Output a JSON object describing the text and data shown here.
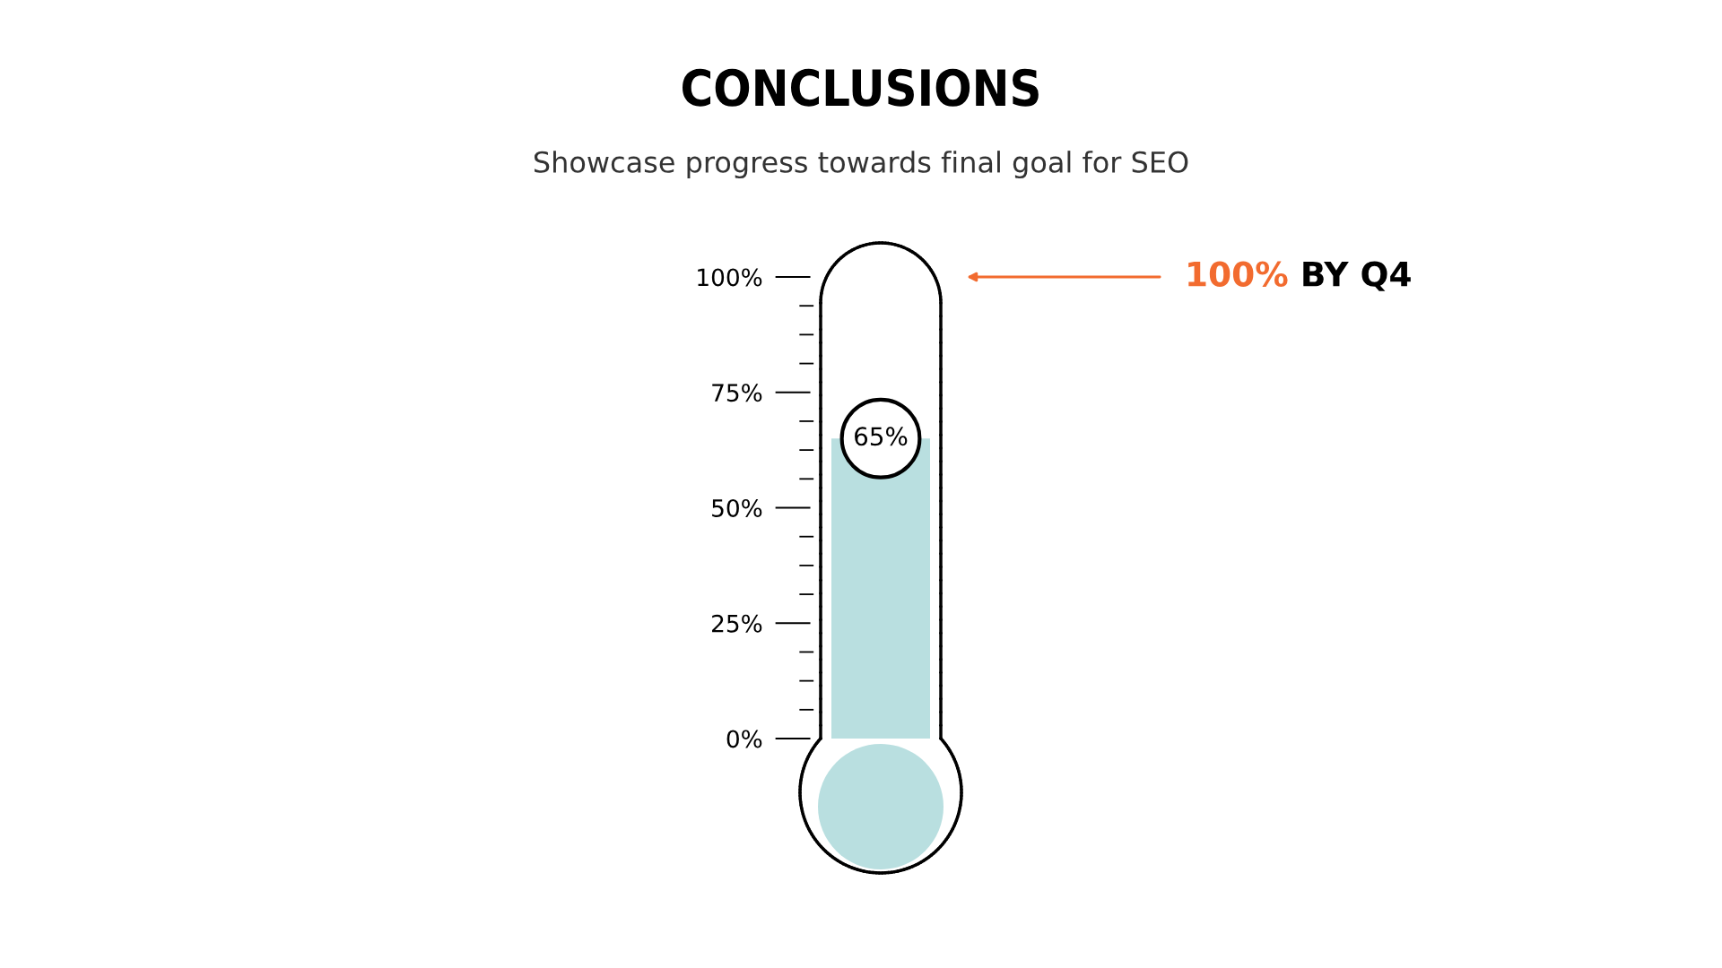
{
  "chart_data": {
    "type": "bar",
    "title": "CONCLUSIONS",
    "subtitle": "Showcase progress towards final goal for SEO",
    "categories": [
      null
    ],
    "values": [
      65
    ],
    "value_labels": [
      "65%"
    ],
    "color": "#b9dfe0",
    "ylim": [
      0,
      100
    ],
    "yticks": [
      {
        "value": 0,
        "label": "0%"
      },
      {
        "value": 25,
        "label": "25%"
      },
      {
        "value": 50,
        "label": "50%"
      },
      {
        "value": 75,
        "label": "75%"
      },
      {
        "value": 100,
        "label": "100%"
      }
    ],
    "grid": false,
    "legend": false,
    "annotations": [
      "100% BY Q4"
    ]
  }
}
